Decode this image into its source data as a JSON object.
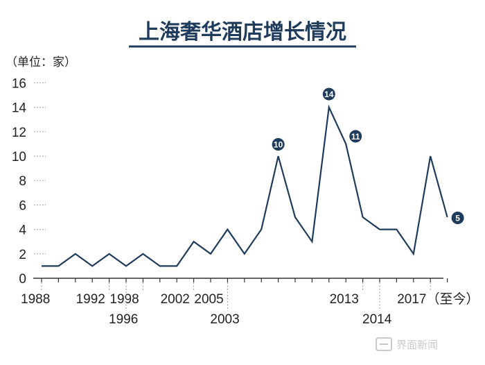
{
  "chart_data": {
    "type": "line",
    "title": "上海奢华酒店增长情况",
    "unit_label": "（单位：家）",
    "ylim": [
      0,
      16
    ],
    "y_ticks": [
      0,
      2,
      4,
      6,
      8,
      10,
      12,
      14,
      16
    ],
    "x_tick_labels": [
      {
        "label": "1988",
        "index": 0,
        "row": 1
      },
      {
        "label": "1992",
        "index": 4,
        "row": 1
      },
      {
        "label": "1998",
        "index": 6,
        "row": 1
      },
      {
        "label": "1996",
        "index": 5,
        "row": 2
      },
      {
        "label": "2002",
        "index": 9,
        "row": 1
      },
      {
        "label": "2005",
        "index": 11,
        "row": 1
      },
      {
        "label": "2003",
        "index": 11,
        "row": 2
      },
      {
        "label": "2013",
        "index": 19,
        "row": 1
      },
      {
        "label": "2014",
        "index": 20,
        "row": 2
      },
      {
        "label": "2017（至今）",
        "index": 23,
        "row": 1
      }
    ],
    "values": [
      1,
      1,
      2,
      1,
      2,
      1,
      2,
      1,
      1,
      3,
      2,
      4,
      2,
      4,
      10,
      5,
      3,
      14,
      11,
      5,
      4,
      4,
      2,
      10,
      5
    ],
    "annotations": [
      {
        "index": 14,
        "text": "10"
      },
      {
        "index": 17,
        "text": "14"
      },
      {
        "index": 18,
        "text": "11"
      },
      {
        "index": 24,
        "text": "5"
      }
    ],
    "grid": false,
    "colors": {
      "line": "#1f3b5c",
      "title": "#1f3b5c",
      "badge": "#1f3b5c",
      "axis": "#333333",
      "guide": "#9a9a9a"
    }
  },
  "watermark": {
    "text": "界面新闻"
  }
}
